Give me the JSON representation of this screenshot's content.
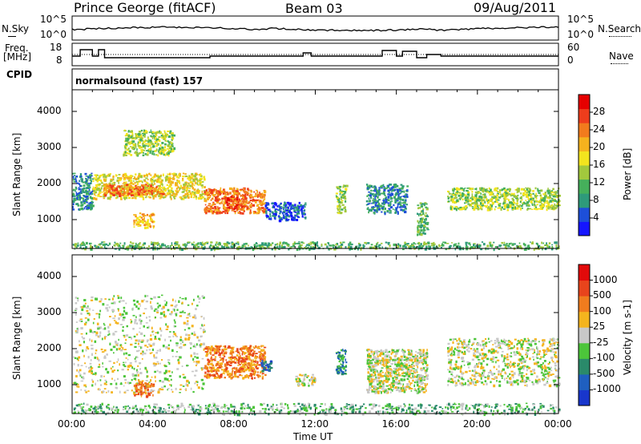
{
  "header": {
    "station": "Prince George (fitACF)",
    "beam": "Beam 03",
    "date": "09/Aug/2011"
  },
  "left_labels": {
    "nsky": "N.Sky",
    "freq_line1": "Freq.",
    "freq_line2": "[MHz]",
    "cpid": "CPID"
  },
  "right_labels": {
    "nsearch": "N.Search",
    "nave": "Nave"
  },
  "noise_panel": {
    "left_ticks": [
      "10^5",
      "10^0"
    ],
    "right_ticks": [
      "10^5",
      "10^0"
    ]
  },
  "freq_panel": {
    "left_ticks": [
      "18",
      "8"
    ],
    "right_ticks": [
      "60",
      "0"
    ]
  },
  "cpid_text": "normalsound (fast) 157",
  "chart_data": [
    {
      "type": "heatmap",
      "name": "power",
      "ylabel": "Slant Range [km]",
      "yticks": [
        "1000",
        "2000",
        "3000",
        "4000"
      ],
      "ylim": [
        200,
        4600
      ],
      "xticks": [
        "00:00",
        "04:00",
        "08:00",
        "12:00",
        "16:00",
        "20:00",
        "00:00"
      ],
      "xlim": [
        0,
        24
      ],
      "colorbar": {
        "label": "Power [dB]",
        "ticks": [
          "4",
          "8",
          "12",
          "16",
          "20",
          "24",
          "28"
        ],
        "colors": [
          "#1515ff",
          "#1d4fd8",
          "#2e9a7a",
          "#45b05b",
          "#a2c83d",
          "#f3e41e",
          "#f5b21e",
          "#f27b1d",
          "#ee3d1c",
          "#e60000"
        ]
      },
      "regions": [
        {
          "x": [
            0.0,
            1.0
          ],
          "y": [
            1300,
            2300
          ],
          "level": 2
        },
        {
          "x": [
            1.0,
            6.5
          ],
          "y": [
            1600,
            2300
          ],
          "level": 5
        },
        {
          "x": [
            1.5,
            4.5
          ],
          "y": [
            1700,
            2000
          ],
          "level": 7
        },
        {
          "x": [
            2.5,
            5.0
          ],
          "y": [
            2800,
            3500
          ],
          "level": 4
        },
        {
          "x": [
            3.0,
            4.0
          ],
          "y": [
            800,
            1200
          ],
          "level": 6
        },
        {
          "x": [
            6.5,
            9.5
          ],
          "y": [
            1200,
            1900
          ],
          "level": 7
        },
        {
          "x": [
            7.5,
            8.5
          ],
          "y": [
            1300,
            1700
          ],
          "level": 8
        },
        {
          "x": [
            9.5,
            11.5
          ],
          "y": [
            1000,
            1500
          ],
          "level": 1
        },
        {
          "x": [
            13.0,
            13.5
          ],
          "y": [
            1200,
            2000
          ],
          "level": 4
        },
        {
          "x": [
            14.5,
            16.5
          ],
          "y": [
            1200,
            2000
          ],
          "level": 2
        },
        {
          "x": [
            17.0,
            17.5
          ],
          "y": [
            600,
            1500
          ],
          "level": 3
        },
        {
          "x": [
            18.5,
            24.0
          ],
          "y": [
            1300,
            1900
          ],
          "level": 4
        },
        {
          "x": [
            0.0,
            24.0
          ],
          "y": [
            200,
            400
          ],
          "level": 3
        }
      ]
    },
    {
      "type": "heatmap",
      "name": "velocity",
      "ylabel": "Slant Range [km]",
      "yticks": [
        "1000",
        "2000",
        "3000",
        "4000"
      ],
      "ylim": [
        200,
        4600
      ],
      "xticks": [
        "00:00",
        "04:00",
        "08:00",
        "12:00",
        "16:00",
        "20:00",
        "00:00"
      ],
      "xlim": [
        0,
        24
      ],
      "xlabel": "Time UT",
      "colorbar": {
        "label": "Velocity [m s-1]",
        "ticks": [
          "1000",
          "500",
          "100",
          "25",
          "-25",
          "-100",
          "-500",
          "-1000"
        ],
        "colors": [
          "#1836cc",
          "#1f5fc0",
          "#2a8a6a",
          "#4cc53a",
          "#c8c8c8",
          "#f4b41e",
          "#f07c1e",
          "#e8441c",
          "#e20a0a"
        ]
      },
      "regions": [
        {
          "x": [
            0.0,
            6.5
          ],
          "y": [
            800,
            3500
          ],
          "level": 4
        },
        {
          "x": [
            6.5,
            9.5
          ],
          "y": [
            1200,
            2100
          ],
          "level": 6
        },
        {
          "x": [
            9.3,
            9.8
          ],
          "y": [
            1400,
            1700
          ],
          "level": 1
        },
        {
          "x": [
            11.0,
            12.0
          ],
          "y": [
            1000,
            1300
          ],
          "level": 4
        },
        {
          "x": [
            13.0,
            13.5
          ],
          "y": [
            1300,
            2000
          ],
          "level": 2
        },
        {
          "x": [
            14.5,
            17.5
          ],
          "y": [
            800,
            2000
          ],
          "level": 4
        },
        {
          "x": [
            18.5,
            24.0
          ],
          "y": [
            1000,
            2300
          ],
          "level": 4
        },
        {
          "x": [
            3.0,
            4.0
          ],
          "y": [
            700,
            1100
          ],
          "level": 6
        },
        {
          "x": [
            0.0,
            24.0
          ],
          "y": [
            200,
            500
          ],
          "level": 3
        }
      ]
    }
  ]
}
